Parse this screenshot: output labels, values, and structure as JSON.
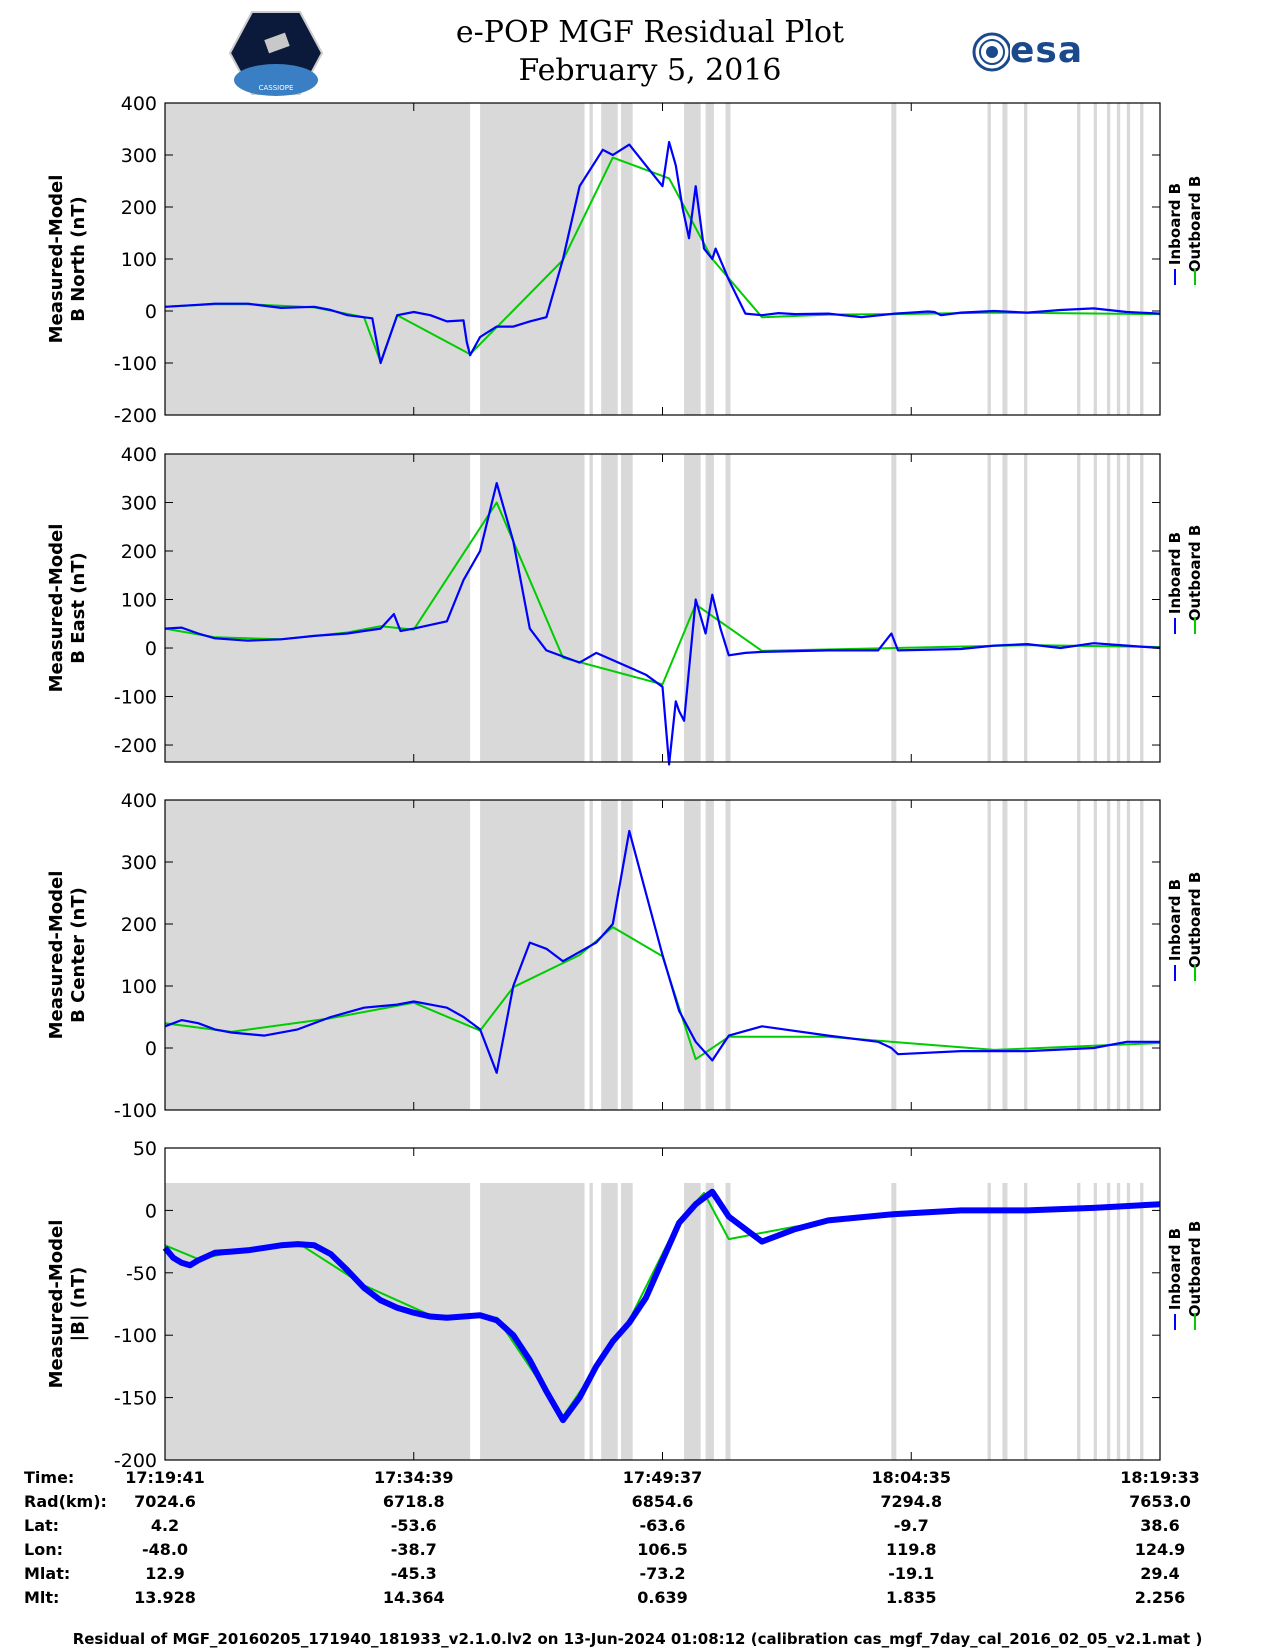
{
  "title": {
    "line1": "e-POP MGF Residual Plot",
    "line2": "February 5, 2016"
  },
  "logos": {
    "left": "CASSIOPE",
    "right": "esa"
  },
  "colors": {
    "inboard": "#0000ff",
    "outboard": "#00cc00",
    "gap_shading": "#d9d9d9",
    "axis": "#000000"
  },
  "legend": {
    "inboard": "Inboard B",
    "outboard": "Outboard B"
  },
  "chart_data": [
    {
      "type": "line",
      "ylabel_line1": "Measured-Model",
      "ylabel_line2": "B North (nT)",
      "ylim": [
        -200,
        400
      ],
      "yticks": [
        -200,
        -100,
        0,
        100,
        200,
        300,
        400
      ],
      "ytick_labels": [
        "-200",
        "-100",
        "0",
        "100",
        "200",
        "300",
        "400"
      ],
      "grid": false,
      "legend_position": "right",
      "series": [
        {
          "name": "Inboard B",
          "x": [
            0,
            1,
            2,
            3,
            5,
            7,
            9,
            10,
            11,
            12.5,
            13,
            14,
            15,
            16,
            17,
            18,
            18.2,
            18.4,
            19,
            20,
            21,
            22,
            23,
            24,
            25,
            26,
            26.4,
            27,
            28,
            29,
            30,
            30.4,
            30.8,
            31.2,
            31.6,
            32,
            32.5,
            33,
            33.2,
            34,
            35,
            36,
            37,
            38,
            40,
            42,
            44,
            45,
            46,
            46.4,
            46.8,
            48,
            50,
            52,
            54,
            56,
            58,
            60
          ],
          "values": [
            8,
            10,
            12,
            14,
            14,
            6,
            8,
            2,
            -8,
            -14,
            -100,
            -8,
            -2,
            -8,
            -20,
            -18,
            -60,
            -85,
            -50,
            -30,
            -30,
            -20,
            -12,
            100,
            240,
            290,
            310,
            300,
            320,
            280,
            240,
            325,
            280,
            200,
            140,
            240,
            120,
            100,
            120,
            60,
            -5,
            -8,
            -4,
            -6,
            -5,
            -12,
            -5,
            -3,
            -1,
            -2,
            -8,
            -3,
            0,
            -3,
            2,
            5,
            -2,
            -5
          ]
        },
        {
          "name": "Outboard B",
          "x": [
            0,
            3,
            5,
            9,
            12,
            13,
            14,
            18.4,
            24,
            27,
            30.4,
            33,
            36,
            40,
            44,
            50,
            60
          ],
          "values": [
            8,
            13,
            13,
            7,
            -12,
            -98,
            -8,
            -83,
            98,
            295,
            255,
            100,
            -12,
            -7,
            -6,
            -3,
            -6
          ]
        }
      ],
      "gaps": [
        [
          0,
          18.4
        ],
        [
          19,
          25.3
        ],
        [
          25.6,
          25.8
        ],
        [
          26.3,
          27.3
        ],
        [
          27.5,
          28.2
        ],
        [
          31.3,
          32.3
        ],
        [
          32.6,
          33.1
        ],
        [
          33.8,
          34.1
        ],
        [
          43.8,
          44.1
        ],
        [
          49.6,
          49.8
        ],
        [
          50.5,
          50.8
        ],
        [
          51.8,
          52.0
        ],
        [
          55.0,
          55.2
        ],
        [
          56.0,
          56.2
        ],
        [
          56.8,
          57.0
        ],
        [
          57.4,
          57.6
        ],
        [
          58.0,
          58.2
        ],
        [
          58.8,
          59.0
        ]
      ]
    },
    {
      "type": "line",
      "ylabel_line1": "Measured-Model",
      "ylabel_line2": "B East (nT)",
      "ylim": [
        -235,
        400
      ],
      "yticks": [
        -200,
        -100,
        0,
        100,
        200,
        300,
        400
      ],
      "ytick_labels": [
        "-200",
        "-100",
        "0",
        "100",
        "200",
        "300",
        "400"
      ],
      "grid": false,
      "legend_position": "right",
      "series": [
        {
          "name": "Inboard B",
          "x": [
            0,
            1,
            2,
            3,
            5,
            7,
            9,
            11,
            12,
            13,
            13.8,
            14.2,
            15,
            17,
            18,
            19,
            20,
            21,
            22,
            23,
            25,
            26,
            27,
            28,
            29,
            30,
            30.4,
            30.8,
            31,
            31.3,
            32,
            32.6,
            33,
            33.5,
            34,
            35,
            36,
            40,
            43,
            43.8,
            44.2,
            48,
            50,
            52,
            54,
            56,
            58,
            60
          ],
          "values": [
            40,
            42,
            30,
            20,
            15,
            18,
            25,
            30,
            35,
            40,
            70,
            35,
            40,
            55,
            140,
            200,
            340,
            220,
            40,
            -5,
            -30,
            -10,
            -25,
            -40,
            -55,
            -80,
            -240,
            -110,
            -130,
            -150,
            100,
            30,
            110,
            40,
            -15,
            -10,
            -8,
            -5,
            -5,
            30,
            -5,
            -2,
            5,
            8,
            0,
            10,
            5,
            0
          ]
        },
        {
          "name": "Outboard B",
          "x": [
            0,
            3,
            7,
            11,
            13,
            15,
            20,
            24,
            30,
            32,
            36,
            44,
            52,
            60
          ],
          "values": [
            40,
            22,
            18,
            32,
            45,
            38,
            300,
            -20,
            -75,
            90,
            -6,
            0,
            6,
            2
          ]
        }
      ],
      "gaps": [
        [
          0,
          18.4
        ],
        [
          19,
          25.3
        ],
        [
          25.6,
          25.8
        ],
        [
          26.3,
          27.3
        ],
        [
          27.5,
          28.2
        ],
        [
          31.3,
          32.3
        ],
        [
          32.6,
          33.1
        ],
        [
          33.8,
          34.1
        ],
        [
          43.8,
          44.1
        ],
        [
          49.6,
          49.8
        ],
        [
          50.5,
          50.8
        ],
        [
          51.8,
          52.0
        ],
        [
          55.0,
          55.2
        ],
        [
          56.0,
          56.2
        ],
        [
          56.8,
          57.0
        ],
        [
          57.4,
          57.6
        ],
        [
          58.0,
          58.2
        ],
        [
          58.8,
          59.0
        ]
      ]
    },
    {
      "type": "line",
      "ylabel_line1": "Measured-Model",
      "ylabel_line2": "B Center (nT)",
      "ylim": [
        -100,
        400
      ],
      "yticks": [
        -100,
        0,
        100,
        200,
        300,
        400
      ],
      "ytick_labels": [
        "-100",
        "0",
        "100",
        "200",
        "300",
        "400"
      ],
      "grid": false,
      "legend_position": "right",
      "series": [
        {
          "name": "Inboard B",
          "x": [
            0,
            1,
            2,
            3,
            4,
            6,
            8,
            10,
            12,
            14,
            15,
            16,
            17,
            18,
            19,
            20,
            21,
            22,
            23,
            24,
            25,
            26,
            27,
            28,
            29,
            30,
            31,
            32,
            33,
            34,
            36,
            40,
            43,
            43.8,
            44.2,
            48,
            52,
            56,
            58,
            60
          ],
          "values": [
            35,
            45,
            40,
            30,
            25,
            20,
            30,
            50,
            65,
            70,
            75,
            70,
            65,
            50,
            30,
            -40,
            100,
            170,
            160,
            140,
            155,
            170,
            200,
            350,
            250,
            150,
            60,
            10,
            -20,
            20,
            35,
            20,
            10,
            0,
            -10,
            -5,
            -5,
            0,
            10,
            10
          ]
        },
        {
          "name": "Outboard B",
          "x": [
            0,
            4,
            10,
            15,
            19,
            21,
            25,
            27,
            30,
            32,
            34,
            40,
            50,
            60
          ],
          "values": [
            40,
            26,
            48,
            73,
            28,
            98,
            150,
            195,
            148,
            -18,
            18,
            18,
            -3,
            8
          ]
        }
      ],
      "gaps": [
        [
          0,
          18.4
        ],
        [
          19,
          25.3
        ],
        [
          25.6,
          25.8
        ],
        [
          26.3,
          27.3
        ],
        [
          27.5,
          28.2
        ],
        [
          31.3,
          32.3
        ],
        [
          32.6,
          33.1
        ],
        [
          33.8,
          34.1
        ],
        [
          43.8,
          44.1
        ],
        [
          49.6,
          49.8
        ],
        [
          50.5,
          50.8
        ],
        [
          51.8,
          52.0
        ],
        [
          55.0,
          55.2
        ],
        [
          56.0,
          56.2
        ],
        [
          56.8,
          57.0
        ],
        [
          57.4,
          57.6
        ],
        [
          58.0,
          58.2
        ],
        [
          58.8,
          59.0
        ]
      ]
    },
    {
      "type": "line",
      "ylabel_line1": "Measured-Model",
      "ylabel_line2": "|B| (nT)",
      "ylim": [
        -200,
        50
      ],
      "yticks": [
        -200,
        -150,
        -100,
        -50,
        0,
        50
      ],
      "ytick_labels": [
        "-200",
        "-150",
        "-100",
        "-50",
        "0",
        "50"
      ],
      "grid": false,
      "legend_position": "right",
      "series": [
        {
          "name": "Inboard B",
          "x": [
            0,
            0.5,
            1,
            1.5,
            2,
            3,
            4,
            5,
            6,
            7,
            8,
            9,
            10,
            11,
            12,
            13,
            14,
            15,
            16,
            17,
            18,
            19,
            20,
            21,
            22,
            23,
            24,
            25,
            26,
            27,
            28,
            29,
            30,
            31,
            32,
            33,
            34,
            36,
            38,
            40,
            44,
            48,
            52,
            56,
            60
          ],
          "values": [
            -30,
            -38,
            -42,
            -44,
            -40,
            -34,
            -33,
            -32,
            -30,
            -28,
            -27,
            -28,
            -35,
            -48,
            -62,
            -72,
            -78,
            -82,
            -85,
            -86,
            -85,
            -84,
            -88,
            -100,
            -120,
            -145,
            -168,
            -150,
            -125,
            -105,
            -90,
            -70,
            -40,
            -10,
            5,
            15,
            -5,
            -25,
            -15,
            -8,
            -3,
            0,
            0,
            2,
            5
          ]
        },
        {
          "name": "Outboard B",
          "x": [
            0,
            2,
            5,
            8,
            12,
            16,
            20,
            24,
            28,
            31,
            32.5,
            34,
            38,
            44,
            52,
            60
          ],
          "values": [
            -28,
            -39,
            -31,
            -26,
            -60,
            -84,
            -86,
            -165,
            -88,
            -8,
            14,
            -23,
            -13,
            -2,
            1,
            6
          ]
        }
      ],
      "gaps": [
        [
          0,
          18.4
        ],
        [
          19,
          25.3
        ],
        [
          25.6,
          25.8
        ],
        [
          26.3,
          27.3
        ],
        [
          27.5,
          28.2
        ],
        [
          31.3,
          32.3
        ],
        [
          32.6,
          33.1
        ],
        [
          33.8,
          34.1
        ],
        [
          43.8,
          44.1
        ],
        [
          49.6,
          49.8
        ],
        [
          50.5,
          50.8
        ],
        [
          51.8,
          52.0
        ],
        [
          55.0,
          55.2
        ],
        [
          56.0,
          56.2
        ],
        [
          56.8,
          57.0
        ],
        [
          57.4,
          57.6
        ],
        [
          58.0,
          58.2
        ],
        [
          58.8,
          59.0
        ]
      ]
    }
  ],
  "xticks": [
    0,
    15,
    30,
    45,
    60
  ],
  "info": {
    "rows": [
      {
        "label": "Time:",
        "values": [
          "17:19:41",
          "17:34:39",
          "17:49:37",
          "18:04:35",
          "18:19:33"
        ]
      },
      {
        "label": "Rad(km):",
        "values": [
          "7024.6",
          "6718.8",
          "6854.6",
          "7294.8",
          "7653.0"
        ]
      },
      {
        "label": "Lat:",
        "values": [
          "4.2",
          "-53.6",
          "-63.6",
          "-9.7",
          "38.6"
        ]
      },
      {
        "label": "Lon:",
        "values": [
          "-48.0",
          "-38.7",
          "106.5",
          "119.8",
          "124.9"
        ]
      },
      {
        "label": "Mlat:",
        "values": [
          "12.9",
          "-45.3",
          "-73.2",
          "-19.1",
          "29.4"
        ]
      },
      {
        "label": "Mlt:",
        "values": [
          "13.928",
          "14.364",
          "0.639",
          "1.835",
          "2.256"
        ]
      }
    ]
  },
  "footer": "Residual of MGF_20160205_171940_181933_v2.1.0.lv2 on 13-Jun-2024 01:08:12 (calibration cas_mgf_7day_cal_2016_02_05_v2.1.mat )"
}
